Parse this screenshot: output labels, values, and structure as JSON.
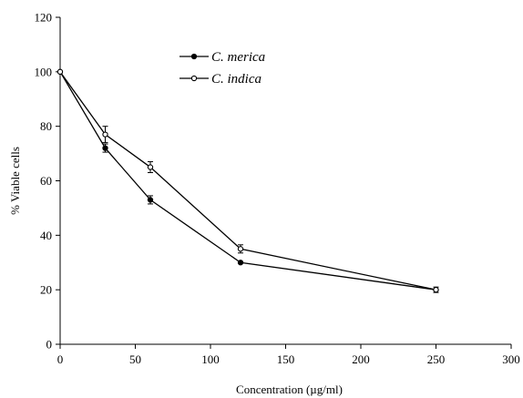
{
  "chart_data": {
    "type": "line",
    "title": "",
    "xlabel": "Concentration (µg/ml)",
    "ylabel": "% Viable cells",
    "xlim": [
      0,
      300
    ],
    "ylim": [
      0,
      120
    ],
    "x_ticks": [
      "0",
      "50",
      "100",
      "150",
      "200",
      "250",
      "300"
    ],
    "y_ticks": [
      "0",
      "20",
      "40",
      "60",
      "80",
      "100",
      "120"
    ],
    "grid": false,
    "legend_position": "top-center",
    "series": [
      {
        "name": "C. merica",
        "marker": "filled-circle",
        "color": "#000000",
        "x": [
          0,
          30,
          60,
          120,
          250
        ],
        "y": [
          100,
          72,
          53,
          30,
          20
        ],
        "error": [
          0,
          1.5,
          1.5,
          0,
          0
        ]
      },
      {
        "name": "C. indica",
        "marker": "open-circle",
        "color": "#000000",
        "x": [
          0,
          30,
          60,
          120,
          250
        ],
        "y": [
          100,
          77,
          65,
          35,
          20
        ],
        "error": [
          0,
          3,
          2,
          1.5,
          1
        ]
      }
    ]
  }
}
